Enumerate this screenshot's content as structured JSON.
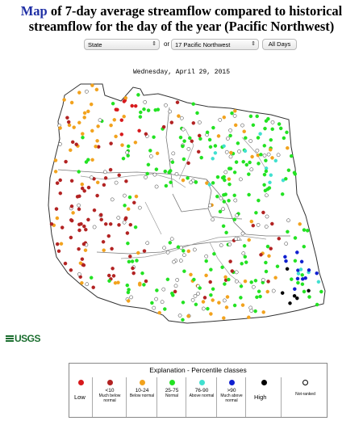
{
  "header": {
    "title_link": "Map",
    "title_rest": " of 7-day average streamflow compared to historical",
    "title_line2": "streamflow for the day of the year (Pacific Northwest)"
  },
  "controls": {
    "scope_select": "State",
    "or_label": "or",
    "region_select": "17 Pacific Northwest",
    "all_days_button": "All Days"
  },
  "map": {
    "date": "Wednesday, April 29, 2015"
  },
  "logo": {
    "text": "USGS"
  },
  "legend": {
    "title": "Explanation - Percentile classes",
    "classes": [
      {
        "key": "low",
        "color": "#d7191c",
        "label": "",
        "sub": "",
        "ring": false
      },
      {
        "key": "lt10",
        "color": "#b22222",
        "label": "<10",
        "sub": "Much below normal",
        "ring": false
      },
      {
        "key": "10_24",
        "color": "#f2a21d",
        "label": "10-24",
        "sub": "Below normal",
        "ring": false
      },
      {
        "key": "25_75",
        "color": "#22e222",
        "label": "25-75",
        "sub": "Normal",
        "ring": false
      },
      {
        "key": "76_90",
        "color": "#40e0d0",
        "label": "76-90",
        "sub": "Above normal",
        "ring": false
      },
      {
        "key": "gt90",
        "color": "#1020d0",
        "label": ">90",
        "sub": "Much above normal",
        "ring": false
      },
      {
        "key": "high",
        "color": "#000000",
        "label": "",
        "sub": "",
        "ring": false
      },
      {
        "key": "notranked",
        "color": "#ffffff",
        "label": "",
        "sub": "Not-ranked",
        "ring": true
      }
    ],
    "low_label": "Low",
    "high_label": "High"
  }
}
